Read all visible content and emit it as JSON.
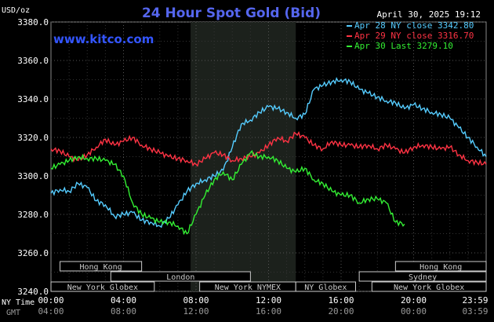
{
  "chart_data": {
    "type": "line",
    "title": "24 Hour Spot Gold (Bid)",
    "site": "www.kitco.com",
    "timestamp": "April 30, 2025 19:12",
    "ylabel": "USD/oz",
    "ylim": [
      3240,
      3380
    ],
    "yticks": [
      "3380.0",
      "3360.0",
      "3340.0",
      "3320.0",
      "3300.0",
      "3280.0",
      "3260.0",
      "3240.0"
    ],
    "xlim_hours": [
      0,
      24
    ],
    "x_ticks_ny": [
      "00:00",
      "04:00",
      "08:00",
      "12:00",
      "16:00",
      "20:00",
      "23:59"
    ],
    "x_ticks_gmt": [
      "04:00",
      "08:00",
      "12:00",
      "16:00",
      "20:00",
      "00:00",
      "03:59"
    ],
    "x_axis_labels": [
      "NY Time",
      "GMT"
    ],
    "grid": true,
    "legend_position": "top-right",
    "shaded_session_hours": [
      7.7,
      13.5
    ],
    "sessions": [
      {
        "name": "Hong Kong",
        "start": 0.5,
        "end": 5.0
      },
      {
        "name": "Hong Kong",
        "start": 19.0,
        "end": 24.0
      },
      {
        "name": "London",
        "start": 3.3,
        "end": 11.0
      },
      {
        "name": "Sydney",
        "start": 17.0,
        "end": 24.0
      },
      {
        "name": "New York Globex",
        "start": 0.0,
        "end": 5.7
      },
      {
        "name": "New York NYMEX",
        "start": 8.2,
        "end": 13.5
      },
      {
        "name": "NY Globex",
        "start": 13.5,
        "end": 16.8
      },
      {
        "name": "New York Globex",
        "start": 17.7,
        "end": 24.0
      }
    ],
    "series": [
      {
        "name": "Apr 28 NY close 3342.80",
        "color": "#55ccff",
        "x": [
          0,
          0.5,
          1,
          1.5,
          2,
          2.5,
          3,
          3.5,
          4,
          4.5,
          5,
          5.5,
          6,
          6.5,
          7,
          7.5,
          8,
          8.5,
          9,
          9.5,
          10,
          10.5,
          11,
          11.5,
          12,
          12.5,
          13,
          13.5,
          14,
          14.5,
          15,
          15.5,
          16,
          16.5,
          17,
          17.5,
          18,
          18.5,
          19,
          19.5,
          20,
          20.5,
          21,
          21.5,
          22,
          22.5,
          23,
          23.5,
          24
        ],
        "values": [
          3291,
          3293,
          3292,
          3296,
          3294,
          3287,
          3285,
          3279,
          3280,
          3281,
          3277,
          3276,
          3274,
          3278,
          3285,
          3292,
          3296,
          3298,
          3300,
          3303,
          3315,
          3327,
          3329,
          3333,
          3336,
          3335,
          3333,
          3330,
          3332,
          3345,
          3347,
          3349,
          3350,
          3349,
          3345,
          3343,
          3341,
          3339,
          3338,
          3335,
          3337,
          3335,
          3333,
          3332,
          3330,
          3325,
          3320,
          3315,
          3310
        ]
      },
      {
        "name": "Apr 29 NY close 3316.70",
        "color": "#ff3344",
        "x": [
          0,
          0.5,
          1,
          1.5,
          2,
          2.5,
          3,
          3.5,
          4,
          4.5,
          5,
          5.5,
          6,
          6.5,
          7,
          7.5,
          8,
          8.5,
          9,
          9.5,
          10,
          10.5,
          11,
          11.5,
          12,
          12.5,
          13,
          13.5,
          14,
          14.5,
          15,
          15.5,
          16,
          16.5,
          17,
          17.5,
          18,
          18.5,
          19,
          19.5,
          20,
          20.5,
          21,
          21.5,
          22,
          22.5,
          23,
          23.5,
          24
        ],
        "values": [
          3314,
          3313,
          3310,
          3308,
          3311,
          3315,
          3319,
          3316,
          3318,
          3320,
          3316,
          3314,
          3312,
          3310,
          3309,
          3308,
          3306,
          3309,
          3312,
          3311,
          3308,
          3309,
          3310,
          3312,
          3316,
          3320,
          3318,
          3322,
          3320,
          3316,
          3314,
          3318,
          3316,
          3316,
          3315,
          3316,
          3314,
          3316,
          3314,
          3312,
          3315,
          3316,
          3315,
          3314,
          3315,
          3311,
          3308,
          3307,
          3306
        ]
      },
      {
        "name": "Apr 30 Last 3279.10",
        "color": "#33ee33",
        "x": [
          0,
          0.5,
          1,
          1.5,
          2,
          2.5,
          3,
          3.5,
          4,
          4.5,
          5,
          5.5,
          6,
          6.5,
          7,
          7.5,
          8,
          8.5,
          9,
          9.5,
          10,
          10.5,
          11,
          11.5,
          12,
          12.5,
          13,
          13.5,
          14,
          14.5,
          15,
          15.5,
          16,
          16.5,
          17,
          17.5,
          18,
          18.5,
          19,
          19.5
        ],
        "values": [
          3304,
          3306,
          3308,
          3310,
          3309,
          3309,
          3308,
          3306,
          3300,
          3286,
          3280,
          3278,
          3276,
          3276,
          3274,
          3270,
          3280,
          3290,
          3298,
          3302,
          3298,
          3306,
          3312,
          3310,
          3310,
          3308,
          3304,
          3302,
          3304,
          3298,
          3296,
          3292,
          3290,
          3290,
          3286,
          3288,
          3288,
          3286,
          3276,
          3275
        ]
      }
    ]
  }
}
